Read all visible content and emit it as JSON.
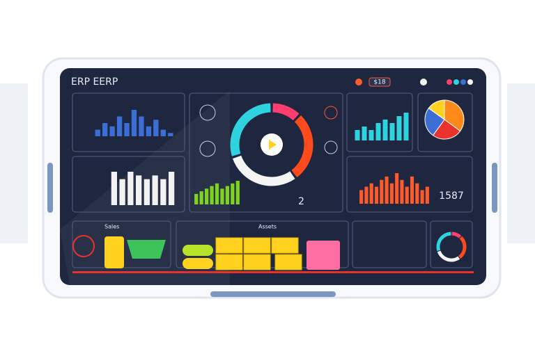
{
  "header": {
    "title": "ERP EERP",
    "badge": "$18"
  },
  "panels": {
    "big_number": "1587",
    "small_number": "2",
    "bottom_left": "Sales",
    "bottom_center": "Assets"
  },
  "charts": [
    {
      "name": "blue-bars",
      "color": "#3b6fd6",
      "values": [
        2,
        4,
        3,
        6,
        4,
        8,
        6,
        3,
        5,
        2,
        1
      ]
    },
    {
      "name": "white-bars",
      "color": "#f2f2f2",
      "values": [
        9,
        7,
        9,
        8,
        7,
        8,
        7,
        9
      ]
    },
    {
      "name": "green-bars",
      "color": "#7ed321",
      "values": [
        4,
        5,
        6,
        7,
        8,
        6,
        7,
        8,
        9
      ]
    },
    {
      "name": "cyan-bars",
      "color": "#2fd3e0",
      "values": [
        3,
        4,
        3,
        5,
        6,
        5,
        7,
        8
      ]
    },
    {
      "name": "red-bars",
      "color": "#ff5a2a",
      "values": [
        4,
        5,
        6,
        5,
        7,
        8,
        6,
        9,
        7,
        5,
        8,
        6,
        4,
        5
      ]
    },
    {
      "name": "donut",
      "colors": [
        "#ff3d6e",
        "#ff4a1c",
        "#f5f5f5",
        "#2fd3e0"
      ],
      "values": [
        12,
        28,
        30,
        30
      ]
    },
    {
      "name": "pie",
      "colors": [
        "#ff8a1c",
        "#e8322b",
        "#3b6fd6",
        "#ffd21f"
      ],
      "values": [
        35,
        25,
        25,
        15
      ]
    }
  ]
}
